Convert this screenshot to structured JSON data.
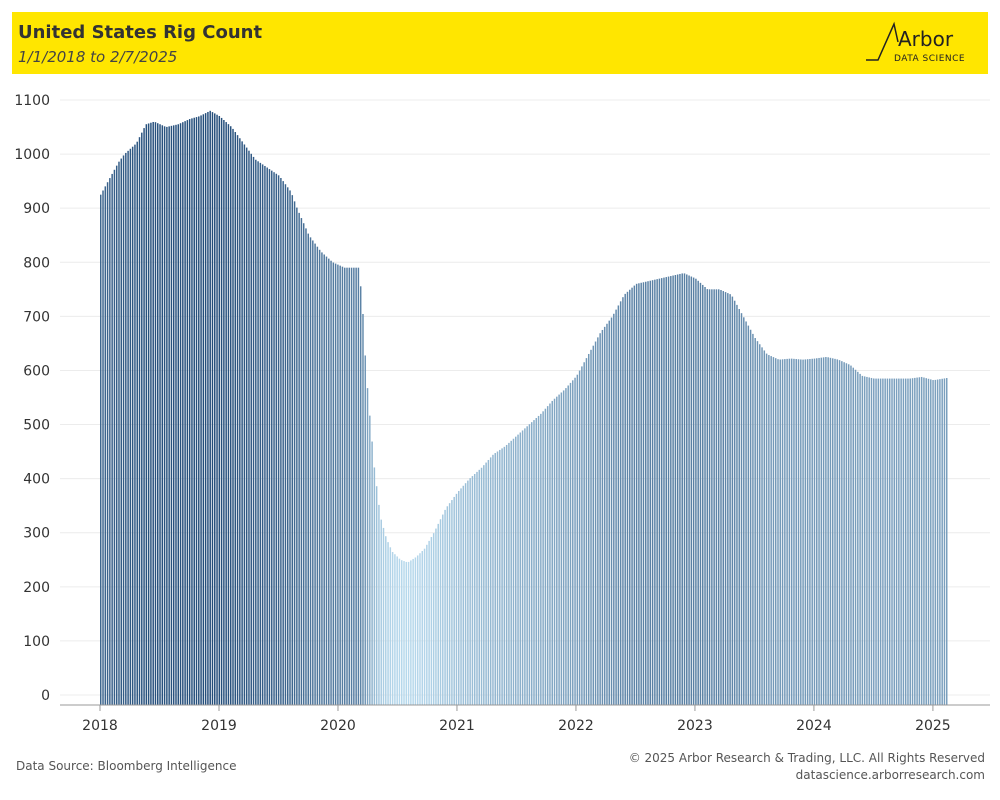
{
  "header": {
    "title": "United States Rig Count",
    "subtitle": "1/1/2018 to 2/7/2025",
    "logo_word": "Arbor",
    "logo_sub": "DATA SCIENCE"
  },
  "footer": {
    "source": "Data Source: Bloomberg Intelligence",
    "copyright": "© 2025 Arbor Research & Trading, LLC. All Rights Reserved",
    "website": "datascience.arborresearch.com"
  },
  "colors": {
    "header_bg": "#ffe600",
    "bar_dark": "#234d7a",
    "bar_light": "#b6d8ec"
  },
  "chart_data": {
    "type": "bar",
    "xlabel": "",
    "ylabel": "",
    "ylim": [
      0,
      1100
    ],
    "yticks": [
      0,
      100,
      200,
      300,
      400,
      500,
      600,
      700,
      800,
      900,
      1000,
      1100
    ],
    "xticks": [
      "2018",
      "2019",
      "2020",
      "2021",
      "2022",
      "2023",
      "2024",
      "2025"
    ],
    "x_range": [
      2018,
      2025.11
    ],
    "legend": "none",
    "grid": "horizontal",
    "color_scale": "darker blue = higher value",
    "anchors": [
      [
        2018.0,
        925
      ],
      [
        2018.05,
        945
      ],
      [
        2018.1,
        965
      ],
      [
        2018.15,
        985
      ],
      [
        2018.2,
        1000
      ],
      [
        2018.3,
        1020
      ],
      [
        2018.38,
        1055
      ],
      [
        2018.45,
        1060
      ],
      [
        2018.55,
        1050
      ],
      [
        2018.65,
        1055
      ],
      [
        2018.75,
        1065
      ],
      [
        2018.83,
        1070
      ],
      [
        2018.92,
        1080
      ],
      [
        2019.0,
        1070
      ],
      [
        2019.1,
        1050
      ],
      [
        2019.2,
        1020
      ],
      [
        2019.3,
        990
      ],
      [
        2019.4,
        975
      ],
      [
        2019.5,
        960
      ],
      [
        2019.6,
        930
      ],
      [
        2019.65,
        900
      ],
      [
        2019.75,
        850
      ],
      [
        2019.85,
        820
      ],
      [
        2019.95,
        800
      ],
      [
        2020.05,
        790
      ],
      [
        2020.12,
        790
      ],
      [
        2020.17,
        790
      ],
      [
        2020.2,
        720
      ],
      [
        2020.23,
        600
      ],
      [
        2020.26,
        520
      ],
      [
        2020.3,
        420
      ],
      [
        2020.35,
        330
      ],
      [
        2020.4,
        290
      ],
      [
        2020.45,
        265
      ],
      [
        2020.52,
        250
      ],
      [
        2020.58,
        245
      ],
      [
        2020.65,
        255
      ],
      [
        2020.72,
        270
      ],
      [
        2020.8,
        300
      ],
      [
        2020.9,
        345
      ],
      [
        2021.0,
        375
      ],
      [
        2021.1,
        400
      ],
      [
        2021.2,
        420
      ],
      [
        2021.3,
        445
      ],
      [
        2021.4,
        460
      ],
      [
        2021.5,
        480
      ],
      [
        2021.6,
        500
      ],
      [
        2021.7,
        520
      ],
      [
        2021.8,
        545
      ],
      [
        2021.9,
        565
      ],
      [
        2022.0,
        590
      ],
      [
        2022.1,
        630
      ],
      [
        2022.2,
        670
      ],
      [
        2022.3,
        700
      ],
      [
        2022.4,
        740
      ],
      [
        2022.5,
        760
      ],
      [
        2022.6,
        765
      ],
      [
        2022.7,
        770
      ],
      [
        2022.8,
        775
      ],
      [
        2022.9,
        780
      ],
      [
        2023.0,
        770
      ],
      [
        2023.1,
        750
      ],
      [
        2023.2,
        750
      ],
      [
        2023.3,
        740
      ],
      [
        2023.4,
        700
      ],
      [
        2023.5,
        660
      ],
      [
        2023.6,
        630
      ],
      [
        2023.7,
        620
      ],
      [
        2023.8,
        622
      ],
      [
        2023.9,
        620
      ],
      [
        2024.0,
        622
      ],
      [
        2024.1,
        625
      ],
      [
        2024.2,
        620
      ],
      [
        2024.3,
        610
      ],
      [
        2024.4,
        590
      ],
      [
        2024.5,
        585
      ],
      [
        2024.6,
        585
      ],
      [
        2024.7,
        585
      ],
      [
        2024.8,
        585
      ],
      [
        2024.9,
        588
      ],
      [
        2025.0,
        582
      ],
      [
        2025.11,
        586
      ]
    ]
  }
}
